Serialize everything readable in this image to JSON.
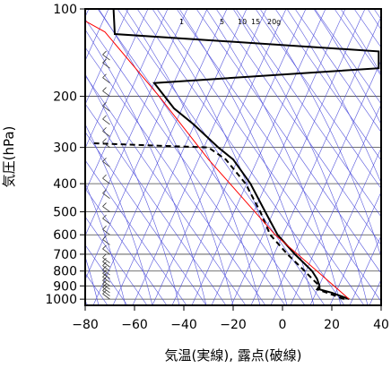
{
  "chart_data": {
    "type": "line",
    "title": "",
    "xlabel": "気温(実線), 露点(破線)",
    "ylabel": "気圧(hPa)",
    "x_unit": "°C",
    "xlim": [
      -80,
      40
    ],
    "ylim": [
      1050,
      100
    ],
    "y_scale": "log",
    "x_ticks": [
      -80,
      -60,
      -40,
      -20,
      0,
      20,
      40
    ],
    "x_tick_labels": [
      "−80",
      "−60",
      "−40",
      "−20",
      "0",
      "20",
      "40"
    ],
    "y_ticks": [
      100,
      200,
      300,
      400,
      500,
      600,
      700,
      800,
      900,
      1000
    ],
    "y_tick_labels": [
      "100",
      "200",
      "300",
      "400",
      "500",
      "600",
      "700",
      "800",
      "900",
      "1000"
    ],
    "mixing_ratio_labels": [
      "1",
      "5",
      "10",
      "15",
      "20g"
    ],
    "mixing_ratio_values": [
      1,
      5,
      10,
      15,
      20
    ],
    "series": [
      {
        "style": "solid",
        "color": "#000000",
        "points": [
          [
            27,
            1000
          ],
          [
            20,
            950
          ],
          [
            15,
            925
          ],
          [
            15,
            900
          ],
          [
            14,
            850
          ],
          [
            12,
            800
          ],
          [
            5,
            700
          ],
          [
            -2,
            600
          ],
          [
            -7,
            500
          ],
          [
            -13,
            400
          ],
          [
            -20,
            330
          ],
          [
            -26,
            300
          ],
          [
            -36,
            250
          ],
          [
            -44,
            220
          ],
          [
            -52,
            180
          ],
          [
            39,
            160
          ],
          [
            39,
            140
          ],
          [
            -68,
            122
          ],
          [
            -68.5,
            100
          ]
        ]
      },
      {
        "style": "dashed",
        "color": "#000000",
        "points": [
          [
            25,
            1000
          ],
          [
            18,
            950
          ],
          [
            14,
            925
          ],
          [
            15,
            900
          ],
          [
            12,
            850
          ],
          [
            9,
            800
          ],
          [
            2,
            700
          ],
          [
            -5,
            600
          ],
          [
            -9,
            500
          ],
          [
            -15,
            400
          ],
          [
            -23,
            330
          ],
          [
            -30,
            300
          ],
          [
            -78,
            290
          ]
        ]
      },
      {
        "style": "solid",
        "color": "#ff0000",
        "points": [
          [
            27,
            1000
          ],
          [
            14,
            800
          ],
          [
            -3,
            600
          ],
          [
            -15,
            460
          ],
          [
            -30,
            330
          ],
          [
            -50,
            200
          ],
          [
            -72,
            120
          ],
          [
            -80,
            110
          ]
        ]
      }
    ],
    "wind_barbs_x": -70,
    "wind_barb_levels": [
      1000,
      975,
      950,
      925,
      900,
      875,
      850,
      825,
      800,
      775,
      750,
      700,
      650,
      600,
      550,
      500,
      450,
      400,
      350,
      300,
      275,
      250,
      225,
      200,
      180,
      160,
      150
    ],
    "grid": {
      "isobars": true,
      "isotherms": true,
      "dry_adiabats": true,
      "moist_adiabats": true,
      "mixing_ratio_lines": true,
      "line_color": "#5555dd"
    }
  }
}
